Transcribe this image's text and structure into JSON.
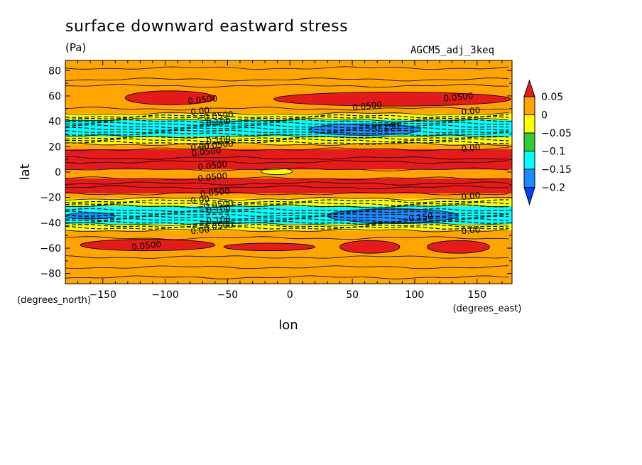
{
  "header": {
    "title": "surface downward eastward stress",
    "units": "(Pa)",
    "run_id": "AGCM5_adj_3keq"
  },
  "chart_data": {
    "type": "heatmap",
    "subtype": "filled-contour",
    "xlabel": "lon",
    "ylabel": "lat",
    "x_units": "(degrees_east)",
    "y_units": "(degrees_north)",
    "xlim": [
      -180,
      178
    ],
    "ylim": [
      -88,
      88
    ],
    "x_ticks": [
      -150,
      -100,
      -50,
      0,
      50,
      100,
      150
    ],
    "y_ticks": [
      -80,
      -60,
      -40,
      -20,
      0,
      20,
      40,
      60,
      80
    ],
    "colorbar": {
      "levels": [
        0.05,
        0,
        -0.05,
        -0.1,
        -0.15,
        -0.2
      ],
      "labels": [
        "0.05",
        "0",
        "−0.05",
        "−0.1",
        "−0.15",
        "−0.2"
      ],
      "colors": {
        "above_0.05": "#e61a1a",
        "0_to_0.05": "#ffa500",
        "-0.05_to_0": "#ffff00",
        "-0.1_to_-0.05": "#33cc33",
        "-0.15_to_-0.1": "#00ffff",
        "-0.2_to_-0.15": "#1a8cff",
        "below_-0.2": "#0040ff"
      }
    },
    "zonal_bands": [
      {
        "lat_from": 88,
        "lat_to": 46,
        "range": "0 to 0.05"
      },
      {
        "lat_from": 46,
        "lat_to": 41,
        "range": "-0.05 to 0"
      },
      {
        "lat_from": 41,
        "lat_to": 28,
        "range": "-0.15 to -0.1"
      },
      {
        "lat_from": 28,
        "lat_to": 22,
        "range": "-0.05 to 0"
      },
      {
        "lat_from": 22,
        "lat_to": 18,
        "range": "0 to 0.05"
      },
      {
        "lat_from": 18,
        "lat_to": 2,
        "range": "above 0.05"
      },
      {
        "lat_from": 2,
        "lat_to": -5,
        "range": "0 to 0.05"
      },
      {
        "lat_from": -5,
        "lat_to": -17,
        "range": "above 0.05"
      },
      {
        "lat_from": -17,
        "lat_to": -21,
        "range": "0 to 0.05"
      },
      {
        "lat_from": -21,
        "lat_to": -27,
        "range": "-0.05 to 0"
      },
      {
        "lat_from": -27,
        "lat_to": -41,
        "range": "-0.15 to -0.1"
      },
      {
        "lat_from": -41,
        "lat_to": -46,
        "range": "-0.05 to 0"
      },
      {
        "lat_from": -46,
        "lat_to": -88,
        "range": "0 to 0.05"
      }
    ],
    "patches": [
      {
        "range": "above 0.05",
        "lon_from": -132,
        "lon_to": -60,
        "lat_from": 53,
        "lat_to": 64
      },
      {
        "range": "above 0.05",
        "lon_from": -13,
        "lon_to": 177,
        "lat_from": 52,
        "lat_to": 63
      },
      {
        "range": "-0.2 to -0.15",
        "lon_from": 15,
        "lon_to": 105,
        "lat_from": 29,
        "lat_to": 38
      },
      {
        "range": "-0.2 to -0.15",
        "lon_from": 30,
        "lon_to": 135,
        "lat_from": -40,
        "lat_to": -29
      },
      {
        "range": "-0.2 to -0.15",
        "lon_from": -180,
        "lon_to": -140,
        "lat_from": -37,
        "lat_to": -32
      },
      {
        "range": "-0.05 to 0",
        "lon_from": -23,
        "lon_to": 2,
        "lat_from": -2,
        "lat_to": 3
      },
      {
        "range": "above 0.05",
        "lon_from": -168,
        "lon_to": -60,
        "lat_from": -62,
        "lat_to": -53
      },
      {
        "range": "above 0.05",
        "lon_from": -53,
        "lon_to": 20,
        "lat_from": -62,
        "lat_to": -56
      },
      {
        "range": "above 0.05",
        "lon_from": 40,
        "lon_to": 88,
        "lat_from": -64,
        "lat_to": -54
      },
      {
        "range": "above 0.05",
        "lon_from": 110,
        "lon_to": 160,
        "lat_from": -64,
        "lat_to": -54
      }
    ],
    "contour_labels": [
      {
        "text": "0.0500",
        "lon": -70,
        "lat": 57
      },
      {
        "text": "0.0500",
        "lon": 135,
        "lat": 59
      },
      {
        "text": "0.0500",
        "lon": 62,
        "lat": 52
      },
      {
        "text": "0.00",
        "lon": -72,
        "lat": 48
      },
      {
        "text": "0.00",
        "lon": 145,
        "lat": 48
      },
      {
        "text": "−0.0500",
        "lon": -60,
        "lat": 44
      },
      {
        "text": "−0.100",
        "lon": -60,
        "lat": 39
      },
      {
        "text": "−0.150",
        "lon": 75,
        "lat": 35
      },
      {
        "text": "−0.100",
        "lon": -60,
        "lat": 25
      },
      {
        "text": "−0.0500",
        "lon": -60,
        "lat": 21
      },
      {
        "text": "0.00",
        "lon": -72,
        "lat": 20
      },
      {
        "text": "0.00",
        "lon": 145,
        "lat": 19
      },
      {
        "text": "0.0500",
        "lon": -67,
        "lat": 16
      },
      {
        "text": "0.0500",
        "lon": -62,
        "lat": 5
      },
      {
        "text": "0.0500",
        "lon": -62,
        "lat": -4
      },
      {
        "text": "0.0500",
        "lon": -60,
        "lat": -16
      },
      {
        "text": "0.00",
        "lon": 145,
        "lat": -19
      },
      {
        "text": "0.00",
        "lon": -72,
        "lat": -22
      },
      {
        "text": "−0.0500",
        "lon": -60,
        "lat": -26
      },
      {
        "text": "−0.100",
        "lon": -60,
        "lat": -30
      },
      {
        "text": "−0.150",
        "lon": 102,
        "lat": -36
      },
      {
        "text": "−0.100",
        "lon": -60,
        "lat": -38
      },
      {
        "text": "−0.0500",
        "lon": -60,
        "lat": -43
      },
      {
        "text": "0.00",
        "lon": -72,
        "lat": -46
      },
      {
        "text": "0.00",
        "lon": 145,
        "lat": -46
      },
      {
        "text": "0.0500",
        "lon": -115,
        "lat": -58
      }
    ]
  }
}
